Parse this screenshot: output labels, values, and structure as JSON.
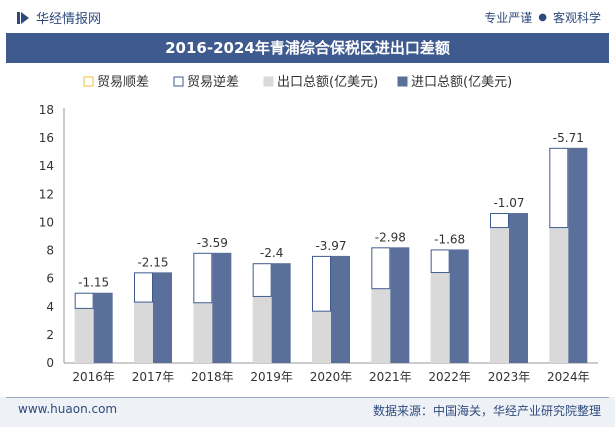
{
  "header": {
    "brand": "华经情报网",
    "tagline_left": "专业严谨",
    "tagline_right": "客观科学"
  },
  "colors": {
    "import": "#5a6f9a",
    "export": "#d9d9d9",
    "balance_border": "#3e5a8f",
    "title_bg": "#3e5a8f"
  },
  "chart_data": {
    "type": "bar",
    "title": "2016-2024年青浦综合保税区进出口差额",
    "categories": [
      "2016年",
      "2017年",
      "2018年",
      "2019年",
      "2020年",
      "2021年",
      "2022年",
      "2023年",
      "2024年"
    ],
    "series": [
      {
        "name": "出口总额(亿美元)",
        "values": [
          3.85,
          4.3,
          4.25,
          4.7,
          3.65,
          5.25,
          6.4,
          9.6,
          9.6
        ]
      },
      {
        "name": "进口总额(亿美元)",
        "values": [
          5.0,
          6.45,
          7.84,
          7.1,
          7.62,
          8.23,
          8.08,
          10.67,
          15.31
        ]
      }
    ],
    "balance": {
      "legend_surplus": "贸易顺差",
      "legend_deficit": "贸易逆差",
      "values": [
        -1.15,
        -2.15,
        -3.59,
        -2.4,
        -3.97,
        -2.98,
        -1.68,
        -1.07,
        -5.71
      ],
      "labels": [
        "-1.15",
        "-2.15",
        "-3.59",
        "-2.4",
        "-3.97",
        "-2.98",
        "-1.68",
        "-1.07",
        "-5.71"
      ]
    },
    "ylim": [
      0,
      18
    ],
    "yticks": [
      "0",
      "2",
      "4",
      "6",
      "8",
      "10",
      "12",
      "14",
      "16",
      "18"
    ],
    "legend_position": "top"
  },
  "footer": {
    "website": "www.huaon.com",
    "source": "数据来源：中国海关，华经产业研究院整理"
  }
}
